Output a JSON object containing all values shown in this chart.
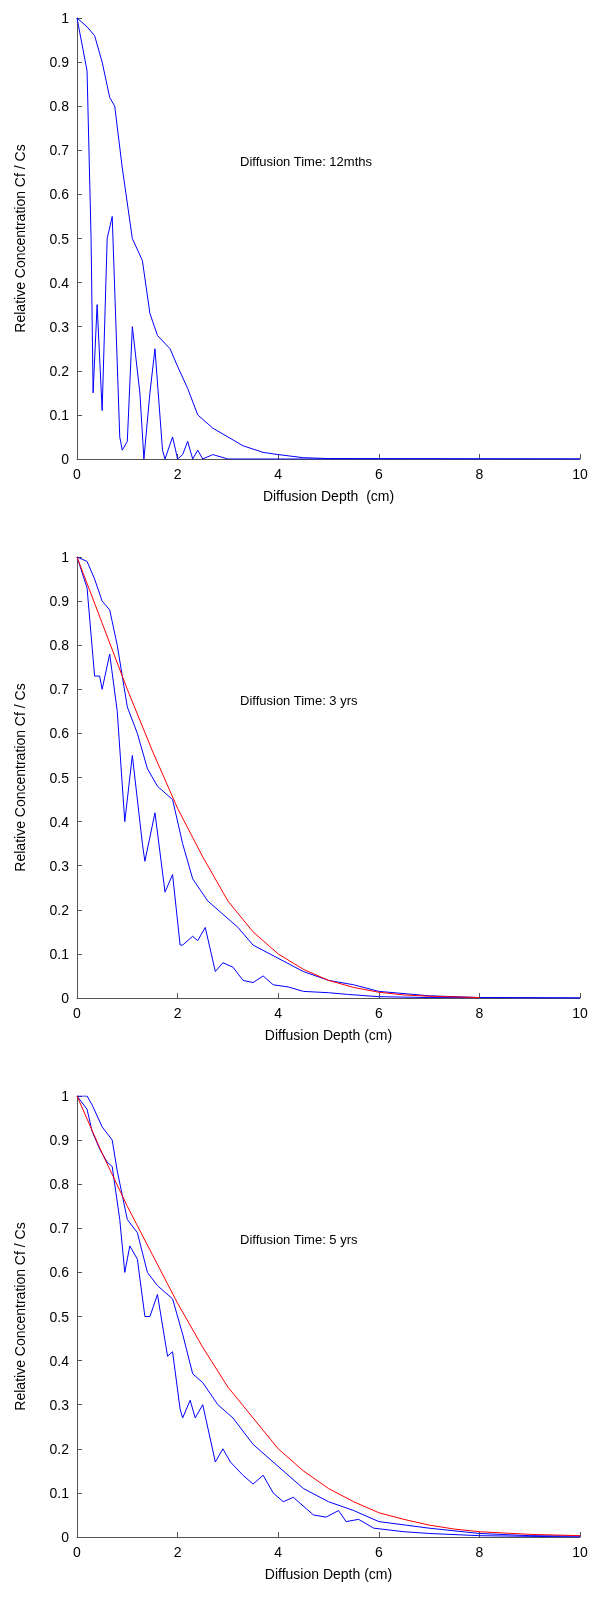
{
  "chart_data": [
    {
      "type": "line",
      "xlabel": "Diffusion Depth  (cm)",
      "ylabel": "Relative Concentration Cf / Cs",
      "annotations": [
        "Diffusion Time: 12mths"
      ],
      "xlim": [
        0,
        10
      ],
      "xticks": [
        0,
        2,
        4,
        6,
        8,
        10
      ],
      "ylim": [
        0,
        1
      ],
      "yticks": [
        0,
        0.1,
        0.2,
        0.3,
        0.4,
        0.5,
        0.6,
        0.7,
        0.8,
        0.9,
        1
      ],
      "series": [
        {
          "color": "#0000ff",
          "x": [
            0,
            0.2,
            0.35,
            0.5,
            0.65,
            0.75,
            0.9,
            1.1,
            1.3,
            1.45,
            1.6,
            1.85,
            2,
            2.2,
            2.4,
            2.7,
            3,
            3.3,
            3.7,
            4,
            4.5,
            5,
            10
          ],
          "values": [
            1,
            0.98,
            0.96,
            0.9,
            0.82,
            0.8,
            0.66,
            0.5,
            0.45,
            0.33,
            0.28,
            0.25,
            0.21,
            0.16,
            0.1,
            0.07,
            0.05,
            0.03,
            0.015,
            0.01,
            0.003,
            0.001,
            0
          ]
        },
        {
          "color": "#0000ff",
          "x": [
            0,
            0.2,
            0.28,
            0.32,
            0.4,
            0.5,
            0.6,
            0.7,
            0.85,
            0.9,
            1.0,
            1.1,
            1.25,
            1.33,
            1.45,
            1.55,
            1.7,
            1.75,
            1.9,
            2.0,
            2.1,
            2.2,
            2.3,
            2.4,
            2.5,
            2.7,
            3,
            10
          ],
          "values": [
            1,
            0.88,
            0.5,
            0.15,
            0.35,
            0.11,
            0.5,
            0.55,
            0.05,
            0.02,
            0.04,
            0.3,
            0.15,
            0,
            0.15,
            0.25,
            0.02,
            0,
            0.05,
            0,
            0.01,
            0.04,
            0,
            0.02,
            0,
            0.01,
            0,
            0
          ]
        }
      ]
    },
    {
      "type": "line",
      "xlabel": "Diffusion Depth (cm)",
      "ylabel": "Relative Concentration Cf / Cs",
      "annotations": [
        "Diffusion Time: 3 yrs"
      ],
      "xlim": [
        0,
        10
      ],
      "xticks": [
        0,
        2,
        4,
        6,
        8,
        10
      ],
      "ylim": [
        0,
        1
      ],
      "yticks": [
        0,
        0.1,
        0.2,
        0.3,
        0.4,
        0.5,
        0.6,
        0.7,
        0.8,
        0.9,
        1
      ],
      "series": [
        {
          "color": "#0000ff",
          "x": [
            0,
            0.2,
            0.35,
            0.5,
            0.65,
            0.8,
            1.0,
            1.2,
            1.4,
            1.6,
            1.9,
            2.1,
            2.3,
            2.6,
            2.9,
            3.2,
            3.5,
            4,
            4.5,
            5,
            5.5,
            6,
            7,
            8,
            10
          ],
          "values": [
            1,
            0.99,
            0.95,
            0.9,
            0.88,
            0.8,
            0.66,
            0.6,
            0.52,
            0.48,
            0.45,
            0.35,
            0.27,
            0.22,
            0.19,
            0.16,
            0.12,
            0.09,
            0.06,
            0.04,
            0.03,
            0.015,
            0.005,
            0.001,
            0
          ]
        },
        {
          "color": "#0000ff",
          "x": [
            0,
            0.2,
            0.35,
            0.45,
            0.5,
            0.65,
            0.8,
            0.95,
            1.1,
            1.3,
            1.35,
            1.55,
            1.75,
            1.9,
            2.05,
            2.1,
            2.3,
            2.4,
            2.55,
            2.75,
            2.9,
            3.1,
            3.3,
            3.5,
            3.7,
            3.9,
            4.2,
            4.5,
            5,
            5.4,
            6,
            7,
            10
          ],
          "values": [
            1,
            0.93,
            0.73,
            0.73,
            0.7,
            0.78,
            0.65,
            0.4,
            0.55,
            0.35,
            0.31,
            0.42,
            0.24,
            0.28,
            0.12,
            0.12,
            0.14,
            0.13,
            0.16,
            0.06,
            0.08,
            0.07,
            0.04,
            0.035,
            0.05,
            0.03,
            0.025,
            0.015,
            0.012,
            0.008,
            0.003,
            0.001,
            0
          ]
        },
        {
          "color": "#ff0000",
          "x": [
            0,
            0.5,
            1,
            1.5,
            2,
            2.5,
            3,
            3.5,
            4,
            4.5,
            5,
            5.5,
            6,
            6.5,
            7,
            8
          ],
          "values": [
            1,
            0.85,
            0.7,
            0.56,
            0.43,
            0.32,
            0.22,
            0.15,
            0.1,
            0.065,
            0.04,
            0.024,
            0.013,
            0.007,
            0.004,
            0.001
          ]
        }
      ]
    },
    {
      "type": "line",
      "xlabel": "Diffusion Depth (cm)",
      "ylabel": "Relative Concentration Cf / Cs",
      "annotations": [
        "Diffusion Time: 5 yrs"
      ],
      "xlim": [
        0,
        10
      ],
      "xticks": [
        0,
        2,
        4,
        6,
        8,
        10
      ],
      "ylim": [
        0,
        1
      ],
      "yticks": [
        0,
        0.1,
        0.2,
        0.3,
        0.4,
        0.5,
        0.6,
        0.7,
        0.8,
        0.9,
        1
      ],
      "series": [
        {
          "color": "#0000ff",
          "x": [
            0,
            0.2,
            0.3,
            0.5,
            0.7,
            0.8,
            1.0,
            1.2,
            1.4,
            1.6,
            1.9,
            2.1,
            2.3,
            2.5,
            2.8,
            3.1,
            3.5,
            4,
            4.5,
            5,
            5.5,
            6,
            7,
            8,
            9,
            10
          ],
          "values": [
            1,
            1,
            0.98,
            0.93,
            0.9,
            0.83,
            0.72,
            0.69,
            0.6,
            0.57,
            0.54,
            0.46,
            0.37,
            0.35,
            0.3,
            0.27,
            0.21,
            0.16,
            0.11,
            0.08,
            0.06,
            0.035,
            0.02,
            0.008,
            0.003,
            0.002
          ]
        },
        {
          "color": "#0000ff",
          "x": [
            0,
            0.2,
            0.3,
            0.45,
            0.6,
            0.7,
            0.85,
            0.95,
            1.05,
            1.2,
            1.35,
            1.45,
            1.6,
            1.8,
            1.9,
            2.05,
            2.1,
            2.25,
            2.35,
            2.5,
            2.75,
            2.9,
            3.05,
            3.3,
            3.5,
            3.7,
            3.9,
            4.1,
            4.3,
            4.7,
            4.95,
            5.2,
            5.35,
            5.6,
            5.9,
            6.5,
            7,
            8,
            10
          ],
          "values": [
            1,
            0.97,
            0.92,
            0.88,
            0.85,
            0.84,
            0.72,
            0.6,
            0.66,
            0.63,
            0.5,
            0.5,
            0.55,
            0.41,
            0.42,
            0.29,
            0.27,
            0.31,
            0.27,
            0.3,
            0.17,
            0.2,
            0.17,
            0.14,
            0.12,
            0.14,
            0.1,
            0.08,
            0.09,
            0.05,
            0.045,
            0.06,
            0.035,
            0.04,
            0.02,
            0.012,
            0.008,
            0.003,
            0
          ]
        },
        {
          "color": "#ff0000",
          "x": [
            0,
            0.5,
            1,
            1.5,
            2,
            2.5,
            3,
            3.5,
            4,
            4.5,
            5,
            5.5,
            6,
            6.5,
            7,
            7.5,
            8,
            9,
            10
          ],
          "values": [
            1,
            0.87,
            0.75,
            0.64,
            0.53,
            0.43,
            0.34,
            0.27,
            0.2,
            0.15,
            0.11,
            0.08,
            0.055,
            0.04,
            0.027,
            0.018,
            0.012,
            0.006,
            0.003
          ]
        }
      ]
    }
  ]
}
